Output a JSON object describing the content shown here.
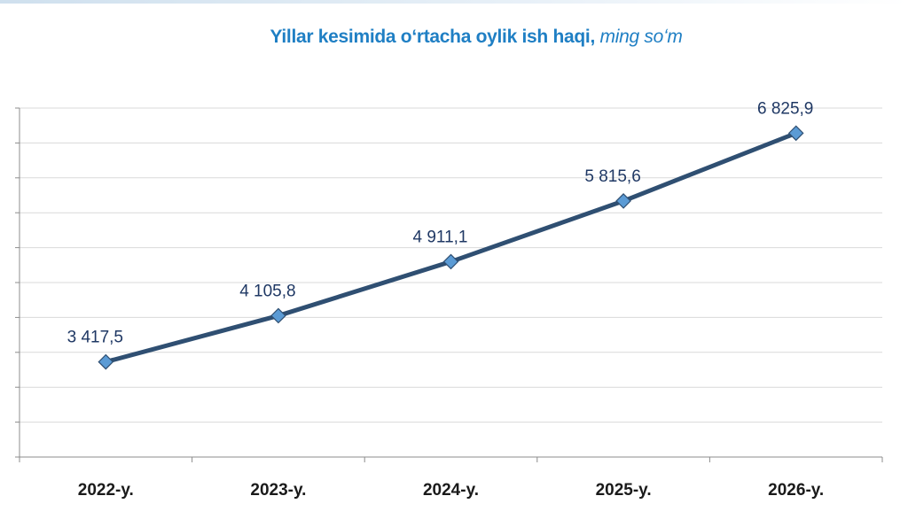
{
  "chart_data": {
    "type": "line",
    "title": "Yillar kesimida oʻrtacha oylik ish haqi,",
    "unit": "ming soʻm",
    "categories": [
      "2022-y.",
      "2023-y.",
      "2024-y.",
      "2025-y.",
      "2026-y."
    ],
    "series": [
      {
        "values": [
          3417.5,
          4105.8,
          4911.1,
          5815.6,
          6825.9
        ],
        "labels": [
          "3 417,5",
          "4 105,8",
          "4 911,1",
          "5 815,6",
          "6 825,9"
        ],
        "color": "#2f4f72",
        "marker_color": "#5b9bd5"
      }
    ],
    "ylim": [
      2000,
      7200
    ],
    "grid": true,
    "legend": "none"
  }
}
